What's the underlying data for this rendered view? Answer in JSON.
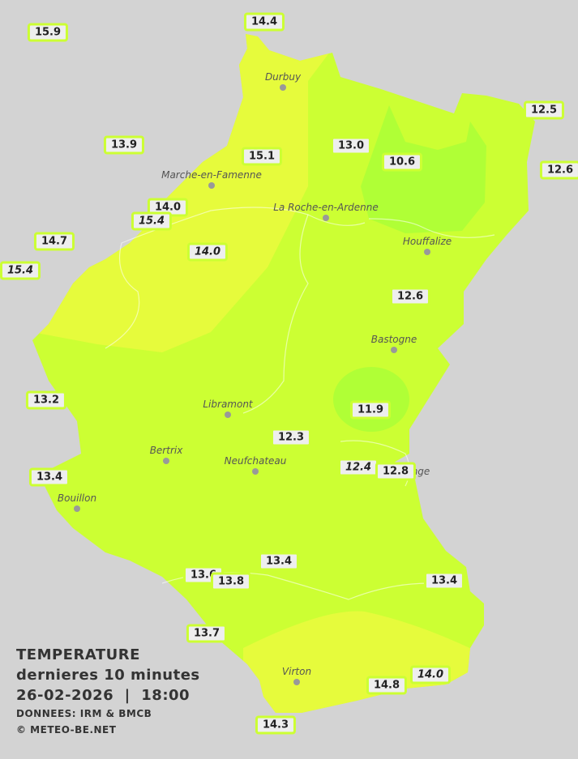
{
  "legend": {
    "title": "TEMPERATURE",
    "subtitle": "dernieres 10 minutes",
    "datetime": "26-02-2026  |  18:00",
    "source": "DONNEES: IRM & BMCB",
    "copyright": "© METEO-BE.NET"
  },
  "colors": {
    "background": "#d3d3d3",
    "zone_base": "#ccff33",
    "zone_warm": "#e6fb3c",
    "zone_cool": "#b0ff36",
    "label_border": "#ccff33"
  },
  "towns": [
    "Durbuy",
    "Marche-en-Famenne",
    "La Roche-en-Ardenne",
    "Houffalize",
    "Bastogne",
    "Libramont",
    "Bertrix",
    "Neufchateau",
    "Bouillon",
    "Virton",
    "nge"
  ],
  "stations": [
    {
      "value": "15.9",
      "italic": false
    },
    {
      "value": "14.4",
      "italic": false
    },
    {
      "value": "13.9",
      "italic": false
    },
    {
      "value": "15.1",
      "italic": false
    },
    {
      "value": "13.0",
      "italic": false
    },
    {
      "value": "10.6",
      "italic": false
    },
    {
      "value": "12.5",
      "italic": false
    },
    {
      "value": "12.6",
      "italic": false
    },
    {
      "value": "14.0",
      "italic": false
    },
    {
      "value": "15.4",
      "italic": true
    },
    {
      "value": "14.7",
      "italic": false
    },
    {
      "value": "15.4",
      "italic": true
    },
    {
      "value": "14.0",
      "italic": true
    },
    {
      "value": "12.6",
      "italic": false
    },
    {
      "value": "13.2",
      "italic": false
    },
    {
      "value": "11.9",
      "italic": false
    },
    {
      "value": "12.3",
      "italic": false
    },
    {
      "value": "12.4",
      "italic": true
    },
    {
      "value": "12.8",
      "italic": false
    },
    {
      "value": "13.4",
      "italic": false
    },
    {
      "value": "13.4",
      "italic": false
    },
    {
      "value": "13.6",
      "italic": false
    },
    {
      "value": "13.8",
      "italic": false
    },
    {
      "value": "13.4",
      "italic": false
    },
    {
      "value": "13.7",
      "italic": false
    },
    {
      "value": "14.8",
      "italic": false
    },
    {
      "value": "14.0",
      "italic": true
    },
    {
      "value": "14.3",
      "italic": false
    }
  ]
}
